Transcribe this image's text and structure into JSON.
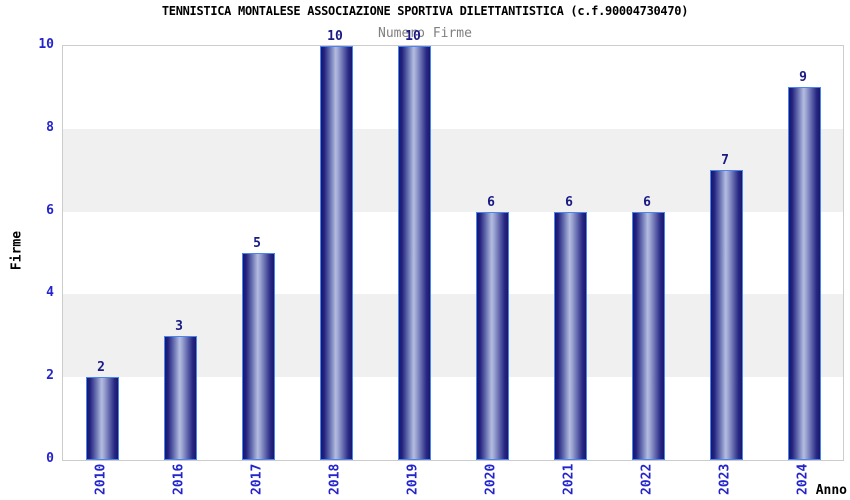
{
  "chart_data": {
    "type": "bar",
    "title": "TENNISTICA MONTALESE ASSOCIAZIONE SPORTIVA DILETTANTISTICA (c.f.90004730470)",
    "subtitle": "Numero Firme",
    "xlabel": "Anno",
    "ylabel": "Firme",
    "categories": [
      "2010",
      "2016",
      "2017",
      "2018",
      "2019",
      "2020",
      "2021",
      "2022",
      "2023",
      "2024"
    ],
    "values": [
      2,
      3,
      5,
      10,
      10,
      6,
      6,
      6,
      7,
      9
    ],
    "ylim": [
      0,
      10
    ],
    "yticks": [
      0,
      2,
      4,
      6,
      8,
      10
    ],
    "gray_bands": [
      [
        6,
        8
      ],
      [
        2,
        4
      ]
    ],
    "legend": "none",
    "grid": "banded",
    "colors": {
      "bar_edge": "#4a86f2",
      "bar_dark": "#17176e",
      "bar_light": "#b4bce0",
      "tick_label": "#2424cc",
      "value_label": "#1a1a84",
      "band": "#f0f0f0",
      "plot_border": "#cccccc",
      "subtitle": "#808080",
      "title": "#000000"
    }
  }
}
